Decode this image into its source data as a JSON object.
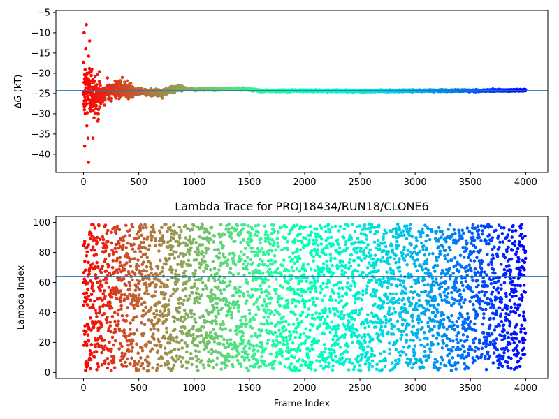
{
  "chart_data": [
    {
      "type": "scatter",
      "title": "",
      "xlabel": "",
      "ylabel": "ΔG (kT)",
      "xlim": [
        -250,
        4200
      ],
      "ylim": [
        -44.5,
        -4.5
      ],
      "xticks": [
        0,
        500,
        1000,
        1500,
        2000,
        2500,
        3000,
        3500,
        4000
      ],
      "xtick_labels": [
        "0",
        "500",
        "1000",
        "1500",
        "2000",
        "2500",
        "3000",
        "3500",
        "4000"
      ],
      "yticks": [
        -40,
        -35,
        -30,
        -25,
        -20,
        -15,
        -10,
        -5
      ],
      "ytick_labels": [
        "−40",
        "−35",
        "−30",
        "−25",
        "−20",
        "−15",
        "−10",
        "−5"
      ],
      "hline": -24.3,
      "hline_color": "#1f77b4",
      "colormap": "rainbow (reversed: red at frame 0 to violet at frame 4000)",
      "n_points": 4000,
      "trend": {
        "x": [
          0,
          30,
          60,
          100,
          150,
          200,
          300,
          400,
          500,
          600,
          700,
          800,
          900,
          1000,
          1200,
          1400,
          1600,
          1800,
          2000,
          2500,
          3000,
          3500,
          4000
        ],
        "y": [
          -25,
          -24,
          -24.5,
          -25.5,
          -25.5,
          -24.5,
          -24,
          -24.5,
          -24.5,
          -24.8,
          -25,
          -24,
          -23.8,
          -24,
          -24,
          -23.8,
          -24.3,
          -24.3,
          -24.3,
          -24.4,
          -24.3,
          -24.3,
          -24.2
        ]
      },
      "outliers": {
        "x": [
          5,
          10,
          15,
          20,
          25,
          30,
          35,
          40,
          45,
          55,
          65,
          75,
          85,
          95,
          100,
          110,
          120
        ],
        "y": [
          -10,
          -38,
          -30,
          -14,
          -8,
          -33,
          -20,
          -36,
          -42,
          -12,
          -27,
          -19,
          -36,
          -31,
          -22,
          -28,
          -30
        ]
      }
    },
    {
      "type": "scatter",
      "title": "Lambda Trace for PROJ18434/RUN18/CLONE6",
      "xlabel": "Frame Index",
      "ylabel": "Lambda Index",
      "xlim": [
        -250,
        4200
      ],
      "ylim": [
        -4,
        104
      ],
      "xticks": [
        0,
        500,
        1000,
        1500,
        2000,
        2500,
        3000,
        3500,
        4000
      ],
      "xtick_labels": [
        "0",
        "500",
        "1000",
        "1500",
        "2000",
        "2500",
        "3000",
        "3500",
        "4000"
      ],
      "yticks": [
        0,
        20,
        40,
        60,
        80,
        100
      ],
      "ytick_labels": [
        "0",
        "20",
        "40",
        "60",
        "80",
        "100"
      ],
      "hline": 64,
      "hline_color": "#1f77b4",
      "colormap": "rainbow (reversed: red at frame 0 to violet at frame 4000)",
      "n_points": 4000,
      "value_range": [
        1,
        99
      ]
    }
  ]
}
